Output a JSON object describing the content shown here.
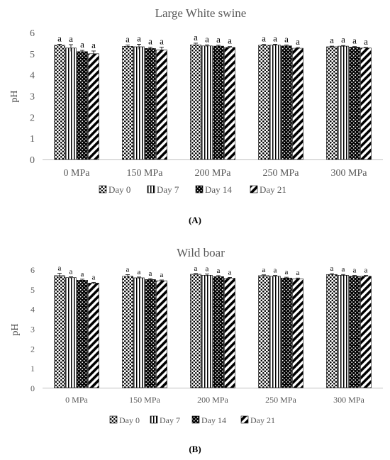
{
  "chart_data": [
    {
      "type": "bar",
      "title": "Large White swine",
      "ylabel": "pH",
      "xlabel": "",
      "ylim": [
        0,
        6
      ],
      "yticks": [
        0,
        1,
        2,
        3,
        4,
        5,
        6
      ],
      "grid": false,
      "legend_position": "bottom",
      "categories": [
        "0 MPa",
        "150 MPa",
        "200 MPa",
        "250 MPa",
        "300 MPa"
      ],
      "series": [
        {
          "name": "Day 0",
          "pattern": "dots",
          "values": [
            5.4,
            5.35,
            5.42,
            5.4,
            5.33
          ],
          "errors": [
            0.05,
            0.06,
            0.08,
            0.04,
            0.03
          ],
          "labels": [
            "a",
            "a",
            "a",
            "a",
            "a"
          ]
        },
        {
          "name": "Day 7",
          "pattern": "vertical",
          "values": [
            5.27,
            5.33,
            5.37,
            5.41,
            5.36
          ],
          "errors": [
            0.16,
            0.12,
            0.05,
            0.04,
            0.03
          ],
          "labels": [
            "a",
            "a",
            "a",
            "a",
            "a"
          ]
        },
        {
          "name": "Day 14",
          "pattern": "checker",
          "values": [
            5.1,
            5.25,
            5.36,
            5.37,
            5.31
          ],
          "errors": [
            0.06,
            0.06,
            0.04,
            0.04,
            0.03
          ],
          "labels": [
            "a",
            "a",
            "a",
            "a",
            "a"
          ]
        },
        {
          "name": "Day 21",
          "pattern": "diagonal",
          "values": [
            5.0,
            5.18,
            5.3,
            5.26,
            5.27
          ],
          "errors": [
            0.13,
            0.13,
            0.04,
            0.04,
            0.03
          ],
          "labels": [
            "a",
            "a",
            "a",
            "a",
            "a"
          ]
        }
      ],
      "caption": "(A)"
    },
    {
      "type": "bar",
      "title": "Wild boar",
      "ylabel": "pH",
      "xlabel": "",
      "ylim": [
        0,
        6
      ],
      "yticks": [
        0,
        1,
        2,
        3,
        4,
        5,
        6
      ],
      "grid": false,
      "legend_position": "bottom",
      "categories": [
        "0 MPa",
        "150 MPa",
        "200 MPa",
        "250 MPa",
        "300 MPa"
      ],
      "series": [
        {
          "name": "Day 0",
          "pattern": "dots",
          "values": [
            5.68,
            5.65,
            5.75,
            5.68,
            5.74
          ],
          "errors": [
            0.12,
            0.08,
            0.04,
            0.04,
            0.04
          ],
          "labels": [
            "a",
            "a",
            "a",
            "a",
            "a"
          ]
        },
        {
          "name": "Day 7",
          "pattern": "vertical",
          "values": [
            5.58,
            5.57,
            5.7,
            5.65,
            5.7
          ],
          "errors": [
            0.04,
            0.04,
            0.06,
            0.04,
            0.04
          ],
          "labels": [
            "a",
            "a",
            "a",
            "a",
            "a"
          ]
        },
        {
          "name": "Day 14",
          "pattern": "checker",
          "values": [
            5.45,
            5.48,
            5.63,
            5.56,
            5.65
          ],
          "errors": [
            0.05,
            0.05,
            0.05,
            0.04,
            0.04
          ],
          "labels": [
            "a",
            "a",
            "a",
            "a",
            "a"
          ]
        },
        {
          "name": "Day 21",
          "pattern": "diagonal",
          "values": [
            5.3,
            5.42,
            5.55,
            5.52,
            5.65
          ],
          "errors": [
            0.04,
            0.04,
            0.04,
            0.04,
            0.04
          ],
          "labels": [
            "a",
            "a",
            "a",
            "a",
            "a"
          ]
        }
      ],
      "caption": "(B)"
    }
  ]
}
